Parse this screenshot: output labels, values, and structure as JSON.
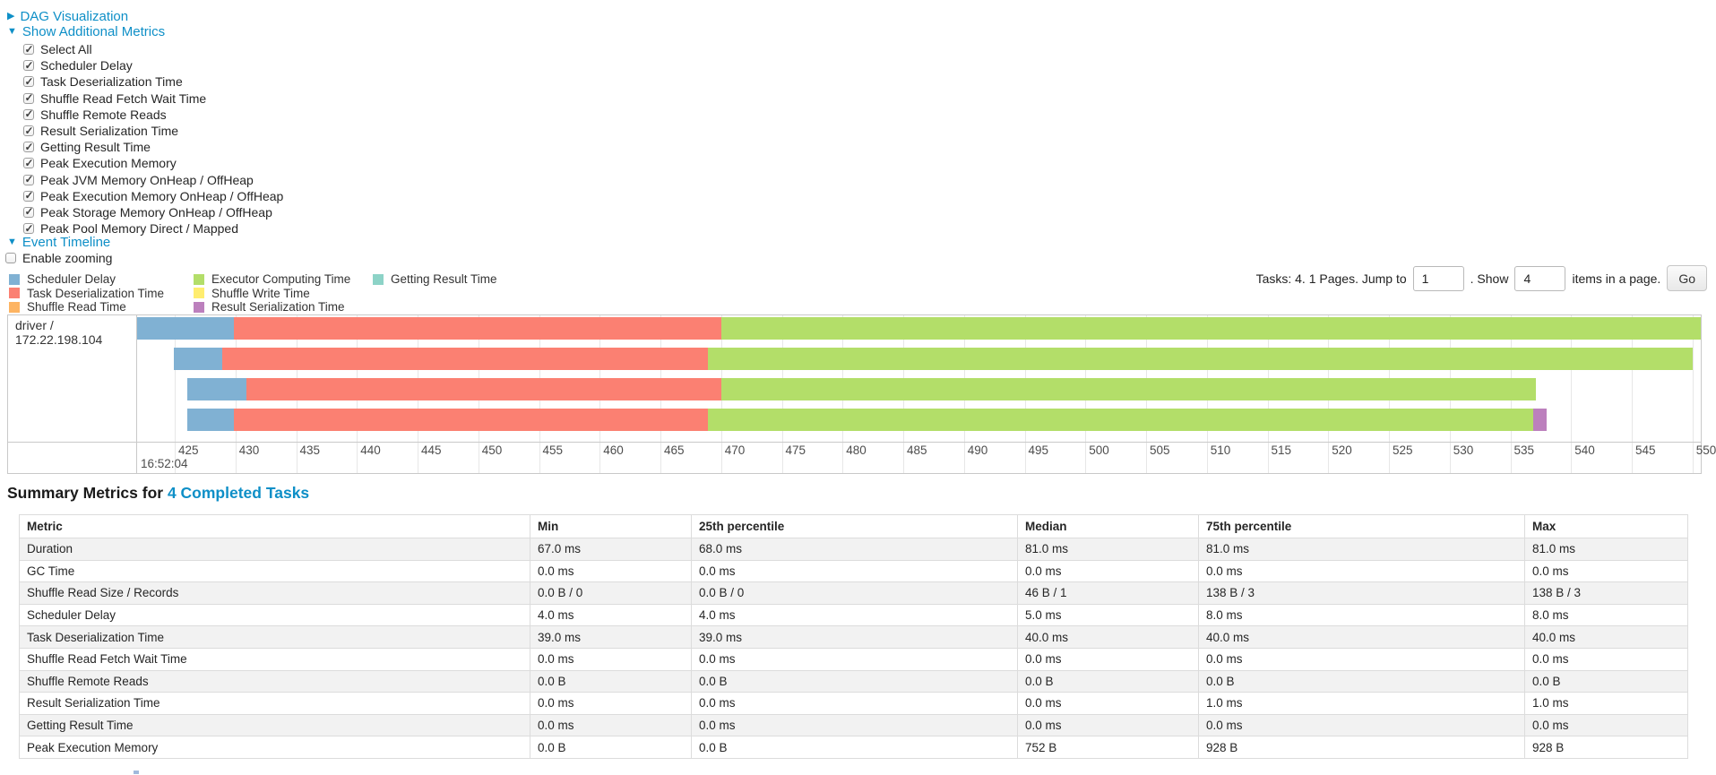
{
  "colors": {
    "link_blue": "#0e8fc7",
    "scheduler_delay": "#80B1D3",
    "task_deserialization": "#FB8072",
    "shuffle_read": "#FDB462",
    "executor_computing": "#B3DE69",
    "shuffle_write": "#FFED6F",
    "result_serialization": "#BC80BD",
    "getting_result": "#8DD3C7"
  },
  "sections": {
    "dag": "DAG Visualization",
    "metrics": "Show Additional Metrics",
    "timeline": "Event Timeline",
    "enable_zooming": "Enable zooming"
  },
  "metric_checkboxes": [
    "Select All",
    "Scheduler Delay",
    "Task Deserialization Time",
    "Shuffle Read Fetch Wait Time",
    "Shuffle Remote Reads",
    "Result Serialization Time",
    "Getting Result Time",
    "Peak Execution Memory",
    "Peak JVM Memory OnHeap / OffHeap",
    "Peak Execution Memory OnHeap / OffHeap",
    "Peak Storage Memory OnHeap / OffHeap",
    "Peak Pool Memory Direct / Mapped"
  ],
  "legend": {
    "columns": [
      [
        {
          "color": "scheduler_delay",
          "label": "Scheduler Delay"
        },
        {
          "color": "task_deserialization",
          "label": "Task Deserialization Time"
        },
        {
          "color": "shuffle_read",
          "label": "Shuffle Read Time"
        }
      ],
      [
        {
          "color": "executor_computing",
          "label": "Executor Computing Time"
        },
        {
          "color": "shuffle_write",
          "label": "Shuffle Write Time"
        },
        {
          "color": "result_serialization",
          "label": "Result Serialization Time"
        }
      ],
      [
        {
          "color": "getting_result",
          "label": "Getting Result Time"
        }
      ]
    ]
  },
  "pagination": {
    "tasks_text": "Tasks: 4. 1 Pages. Jump to",
    "jump_value": "1",
    "show_text": ". Show",
    "show_value": "4",
    "items_text": "items in a page.",
    "go_label": "Go"
  },
  "timeline": {
    "row_label": "driver / 172.22.198.104",
    "axis": {
      "tick_start": 425,
      "tick_end": 550,
      "tick_step": 5,
      "major_label": "16:52:04"
    },
    "bars": [
      {
        "task": "task-0",
        "segments": [
          {
            "color": "scheduler_delay",
            "from": 421.9,
            "to": 429.9
          },
          {
            "color": "task_deserialization",
            "from": 429.9,
            "to": 470.0
          },
          {
            "color": "executor_computing",
            "from": 470.0,
            "to": 550.9
          }
        ]
      },
      {
        "task": "task-1",
        "segments": [
          {
            "color": "scheduler_delay",
            "from": 424.9,
            "to": 428.9
          },
          {
            "color": "task_deserialization",
            "from": 428.9,
            "to": 468.9
          },
          {
            "color": "executor_computing",
            "from": 468.9,
            "to": 550.0
          }
        ]
      },
      {
        "task": "task-2",
        "segments": [
          {
            "color": "scheduler_delay",
            "from": 426.0,
            "to": 430.9
          },
          {
            "color": "task_deserialization",
            "from": 430.9,
            "to": 470.0
          },
          {
            "color": "executor_computing",
            "from": 470.0,
            "to": 537.1
          }
        ]
      },
      {
        "task": "task-3",
        "segments": [
          {
            "color": "scheduler_delay",
            "from": 426.0,
            "to": 429.9
          },
          {
            "color": "task_deserialization",
            "from": 429.9,
            "to": 468.9
          },
          {
            "color": "executor_computing",
            "from": 468.9,
            "to": 536.9
          },
          {
            "color": "result_serialization",
            "from": 536.9,
            "to": 538.0
          }
        ]
      }
    ]
  },
  "summary": {
    "title_prefix": "Summary Metrics for ",
    "title_link": "4 Completed Tasks",
    "table": {
      "headers": [
        "Metric",
        "Min",
        "25th percentile",
        "Median",
        "75th percentile",
        "Max"
      ],
      "rows": [
        [
          "Duration",
          "67.0 ms",
          "68.0 ms",
          "81.0 ms",
          "81.0 ms",
          "81.0 ms"
        ],
        [
          "GC Time",
          "0.0 ms",
          "0.0 ms",
          "0.0 ms",
          "0.0 ms",
          "0.0 ms"
        ],
        [
          "Shuffle Read Size / Records",
          "0.0 B / 0",
          "0.0 B / 0",
          "46 B / 1",
          "138 B / 3",
          "138 B / 3"
        ],
        [
          "Scheduler Delay",
          "4.0 ms",
          "4.0 ms",
          "5.0 ms",
          "8.0 ms",
          "8.0 ms"
        ],
        [
          "Task Deserialization Time",
          "39.0 ms",
          "39.0 ms",
          "40.0 ms",
          "40.0 ms",
          "40.0 ms"
        ],
        [
          "Shuffle Read Fetch Wait Time",
          "0.0 ms",
          "0.0 ms",
          "0.0 ms",
          "0.0 ms",
          "0.0 ms"
        ],
        [
          "Shuffle Remote Reads",
          "0.0 B",
          "0.0 B",
          "0.0 B",
          "0.0 B",
          "0.0 B"
        ],
        [
          "Result Serialization Time",
          "0.0 ms",
          "0.0 ms",
          "0.0 ms",
          "1.0 ms",
          "1.0 ms"
        ],
        [
          "Getting Result Time",
          "0.0 ms",
          "0.0 ms",
          "0.0 ms",
          "0.0 ms",
          "0.0 ms"
        ],
        [
          "Peak Execution Memory",
          "0.0 B",
          "0.0 B",
          "752 B",
          "928 B",
          "928 B"
        ]
      ]
    }
  }
}
